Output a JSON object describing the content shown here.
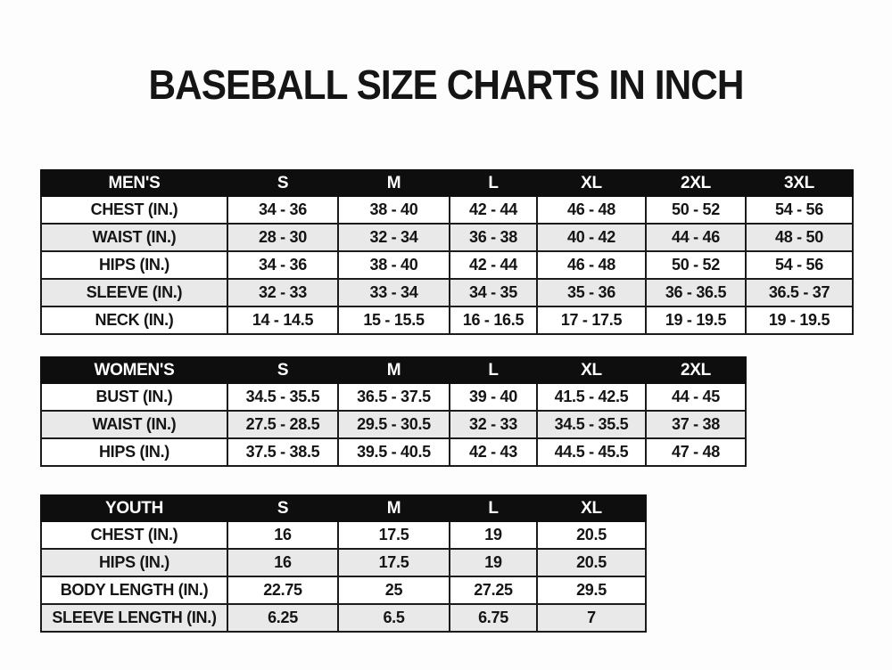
{
  "page": {
    "title": "BASEBALL SIZE CHARTS IN INCH"
  },
  "tables": [
    {
      "id": "mens",
      "header": [
        "MEN'S",
        "S",
        "M",
        "L",
        "XL",
        "2XL",
        "3XL"
      ],
      "rows": [
        [
          "CHEST (IN.)",
          "34 - 36",
          "38 - 40",
          "42 - 44",
          "46 - 48",
          "50 - 52",
          "54 - 56"
        ],
        [
          "WAIST (IN.)",
          "28 - 30",
          "32 - 34",
          "36 - 38",
          "40 - 42",
          "44 - 46",
          "48 - 50"
        ],
        [
          "HIPS (IN.)",
          "34 - 36",
          "38 - 40",
          "42 - 44",
          "46 - 48",
          "50 - 52",
          "54 - 56"
        ],
        [
          "SLEEVE (IN.)",
          "32 - 33",
          "33 - 34",
          "34 - 35",
          "35 - 36",
          "36 - 36.5",
          "36.5 - 37"
        ],
        [
          "NECK (IN.)",
          "14 - 14.5",
          "15 - 15.5",
          "16 - 16.5",
          "17 - 17.5",
          "19 - 19.5",
          "19 - 19.5"
        ]
      ]
    },
    {
      "id": "womens",
      "header": [
        "WOMEN'S",
        "S",
        "M",
        "L",
        "XL",
        "2XL"
      ],
      "rows": [
        [
          "BUST (IN.)",
          "34.5 - 35.5",
          "36.5 - 37.5",
          "39 - 40",
          "41.5 - 42.5",
          "44 - 45"
        ],
        [
          "WAIST (IN.)",
          "27.5 - 28.5",
          "29.5 - 30.5",
          "32 - 33",
          "34.5 - 35.5",
          "37 - 38"
        ],
        [
          "HIPS (IN.)",
          "37.5 - 38.5",
          "39.5 - 40.5",
          "42 - 43",
          "44.5 - 45.5",
          "47 - 48"
        ]
      ]
    },
    {
      "id": "youth",
      "header": [
        "YOUTH",
        "S",
        "M",
        "L",
        "XL"
      ],
      "rows": [
        [
          "CHEST (IN.)",
          "16",
          "17.5",
          "19",
          "20.5"
        ],
        [
          "HIPS (IN.)",
          "16",
          "17.5",
          "19",
          "20.5"
        ],
        [
          "BODY LENGTH (IN.)",
          "22.75",
          "25",
          "27.25",
          "29.5"
        ],
        [
          "SLEEVE LENGTH (IN.)",
          "6.25",
          "6.5",
          "6.75",
          "7"
        ]
      ]
    }
  ],
  "colors": {
    "page_bg": "#fdfdfd",
    "header_bg": "#0e0e0e",
    "header_text": "#ffffff",
    "row_alt_bg": "#e9e9e9",
    "border": "#1b1b1b",
    "text": "#151515"
  }
}
